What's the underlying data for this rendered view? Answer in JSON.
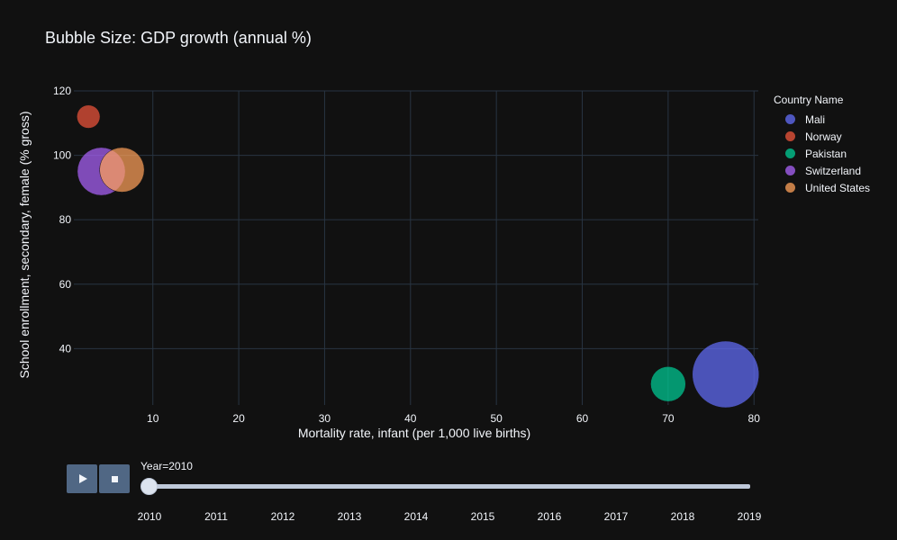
{
  "title": "Bubble Size: GDP growth (annual %)",
  "legend": {
    "title": "Country Name",
    "items": [
      {
        "label": "Mali",
        "color": "#636efa"
      },
      {
        "label": "Norway",
        "color": "#EF553B"
      },
      {
        "label": "Pakistan",
        "color": "#00cc96"
      },
      {
        "label": "Switzerland",
        "color": "#ab63fa"
      },
      {
        "label": "United States",
        "color": "#FFA15A"
      }
    ]
  },
  "slider": {
    "current_label": "Year=2010",
    "years": [
      "2010",
      "2011",
      "2012",
      "2013",
      "2014",
      "2015",
      "2016",
      "2017",
      "2018",
      "2019"
    ],
    "value": "2010"
  },
  "chart_data": {
    "type": "scatter",
    "title": "Bubble Size: GDP growth (annual %)",
    "xlabel": "Mortality rate, infant (per 1,000 live births)",
    "ylabel": "School enrollment, secondary, female (% gross)",
    "xlim": [
      0.8,
      80.5
    ],
    "ylim": [
      22.5,
      120
    ],
    "x_ticks": [
      10,
      20,
      30,
      40,
      50,
      60,
      70,
      80
    ],
    "y_ticks": [
      40,
      60,
      80,
      100,
      120
    ],
    "grid": true,
    "legend_position": "right",
    "series": [
      {
        "name": "Mali",
        "color": "#636efa",
        "x": 76.7,
        "y": 32.0,
        "size": 5.8
      },
      {
        "name": "Norway",
        "color": "#EF553B",
        "x": 2.5,
        "y": 112.0,
        "size": 0.7
      },
      {
        "name": "Pakistan",
        "color": "#00cc96",
        "x": 70.0,
        "y": 29.0,
        "size": 1.6
      },
      {
        "name": "Switzerland",
        "color": "#ab63fa",
        "x": 4.0,
        "y": 95.0,
        "size": 3.0
      },
      {
        "name": "United States",
        "color": "#FFA15A",
        "x": 6.4,
        "y": 95.5,
        "size": 2.6
      }
    ]
  }
}
